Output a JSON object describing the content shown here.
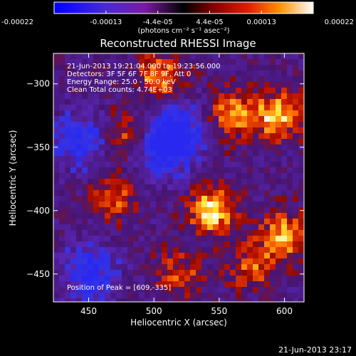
{
  "chart_data": {
    "type": "heatmap",
    "title": "Reconstructed RHESSI Image",
    "xlabel": "Heliocentric X (arcsec)",
    "ylabel": "Heliocentric Y (arcsec)",
    "x_ticks": [
      450,
      500,
      550,
      600
    ],
    "y_ticks": [
      -300,
      -350,
      -400,
      -450
    ],
    "xlim": [
      423,
      615
    ],
    "ylim": [
      -472,
      -276
    ],
    "colorbar": {
      "ticks": [
        "-0.00022",
        "-0.00013",
        "-4.4e-05",
        "4.4e-05",
        "0.00013",
        "0.00022"
      ],
      "range": [
        -0.00022,
        0.00022
      ],
      "unit_label": "(photons cm⁻² s⁻¹ asec⁻²)"
    },
    "annotations": [
      "21-Jun-2013 19:21:04.000 to 19:23:56.000",
      "Detectors: 3F 5F 6F 7F 8F 9F, Att 0",
      "Energy Range: 25.0 - 50.0 keV",
      "Clean    Total counts: 4.74E+03"
    ],
    "peak_label": "Position of Peak = [609,-335]",
    "peak": [
      609,
      -335
    ],
    "hot_regions": [
      {
        "x": 595,
        "y": -325,
        "intensity": 0.9
      },
      {
        "x": 545,
        "y": -400,
        "intensity": 1.0
      },
      {
        "x": 560,
        "y": -325,
        "intensity": 0.8
      },
      {
        "x": 505,
        "y": -295,
        "intensity": 0.75
      },
      {
        "x": 477,
        "y": -342,
        "intensity": 0.6
      },
      {
        "x": 600,
        "y": -420,
        "intensity": 0.85
      },
      {
        "x": 470,
        "y": -390,
        "intensity": 0.55
      },
      {
        "x": 520,
        "y": -450,
        "intensity": 0.5
      },
      {
        "x": 575,
        "y": -445,
        "intensity": 0.6
      }
    ],
    "cold_regions": [
      {
        "x": 445,
        "y": -345
      },
      {
        "x": 505,
        "y": -355
      },
      {
        "x": 450,
        "y": -450
      },
      {
        "x": 520,
        "y": -335
      }
    ]
  },
  "footer_timestamp": "21-Jun-2013 23:17"
}
